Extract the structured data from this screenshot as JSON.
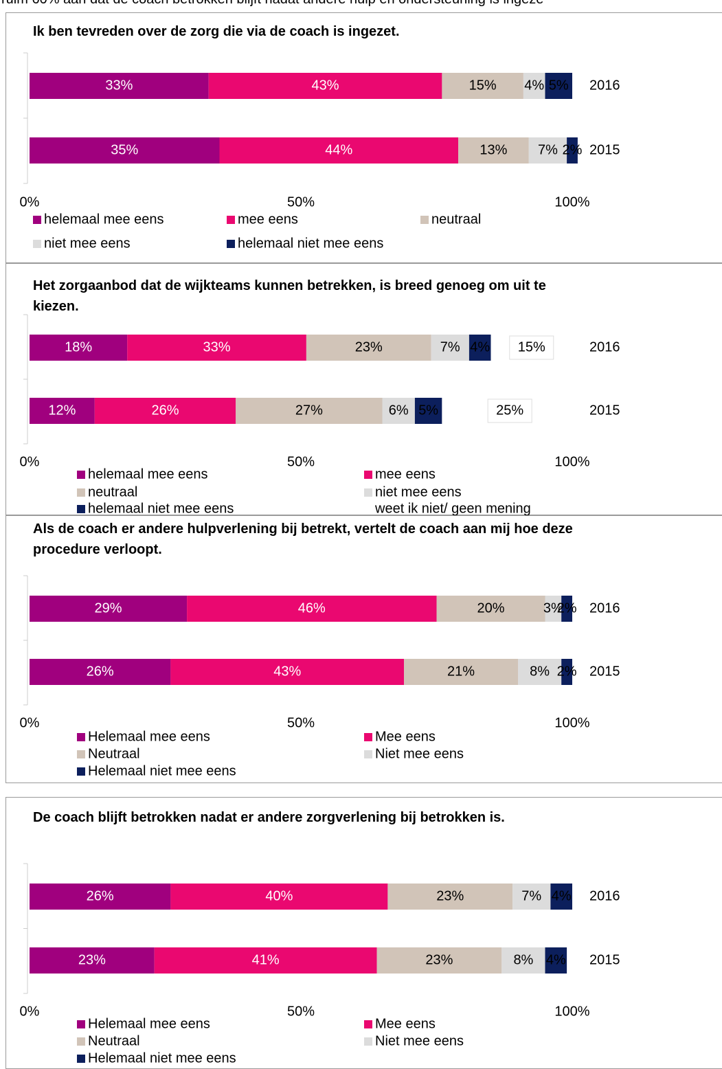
{
  "intro": "ruim 60% aan dat de coach betrokken blijft nadat andere hulp en ondersteuning is ingeze",
  "chart_data": [
    {
      "type": "stacked_bar_horizontal",
      "title": "Ik ben tevreden over de zorg die via de coach is ingezet.",
      "categories": [
        "2016",
        "2015"
      ],
      "xlim": [
        0,
        100
      ],
      "xticks": [
        {
          "value": 0,
          "label": "0%"
        },
        {
          "value": 50,
          "label": "50%"
        },
        {
          "value": 100,
          "label": "100%"
        }
      ],
      "series": [
        {
          "name": "helemaal mee eens",
          "color": "#a0007e",
          "label_color": "#ffffff",
          "values": [
            33,
            35
          ],
          "value_labels": [
            "33%",
            "35%"
          ]
        },
        {
          "name": "mee eens",
          "color": "#ea0870",
          "label_color": "#ffffff",
          "values": [
            43,
            44
          ],
          "value_labels": [
            "43%",
            "44%"
          ]
        },
        {
          "name": "neutraal",
          "color": "#d1c4b8",
          "label_color": "#000000",
          "values": [
            15,
            13
          ],
          "value_labels": [
            "15%",
            "13%"
          ]
        },
        {
          "name": "niet mee eens",
          "color": "#dcdcdc",
          "label_color": "#000000",
          "values": [
            4,
            7
          ],
          "value_labels": [
            "4%",
            "7%"
          ]
        },
        {
          "name": "helemaal niet mee eens",
          "color": "#0c1f5c",
          "label_color": "#000000",
          "values": [
            5,
            2
          ],
          "value_labels": [
            "5%",
            "2%"
          ]
        }
      ]
    },
    {
      "type": "stacked_bar_horizontal",
      "title": "Het zorgaanbod dat de wijkteams kunnen betrekken, is breed genoeg om uit te kiezen.",
      "categories": [
        "2016",
        "2015"
      ],
      "xlim": [
        0,
        100
      ],
      "xticks": [
        {
          "value": 0,
          "label": "0%"
        },
        {
          "value": 50,
          "label": "50%"
        },
        {
          "value": 100,
          "label": "100%"
        }
      ],
      "series": [
        {
          "name": "helemaal mee eens",
          "color": "#a0007e",
          "label_color": "#ffffff",
          "values": [
            18,
            12
          ],
          "value_labels": [
            "18%",
            "12%"
          ]
        },
        {
          "name": "mee eens",
          "color": "#ea0870",
          "label_color": "#ffffff",
          "values": [
            33,
            26
          ],
          "value_labels": [
            "33%",
            "26%"
          ]
        },
        {
          "name": "neutraal",
          "color": "#d1c4b8",
          "label_color": "#000000",
          "values": [
            23,
            27
          ],
          "value_labels": [
            "23%",
            "27%"
          ]
        },
        {
          "name": "niet mee eens",
          "color": "#dcdcdc",
          "label_color": "#000000",
          "values": [
            7,
            6
          ],
          "value_labels": [
            "7%",
            "6%"
          ]
        },
        {
          "name": "helemaal niet mee eens",
          "color": "#0c1f5c",
          "label_color": "#000000",
          "values": [
            4,
            5
          ],
          "value_labels": [
            "4%",
            "5%"
          ]
        },
        {
          "name": "weet ik niet/ geen mening",
          "color": "#ffffff",
          "label_color": "#000000",
          "label_box": true,
          "values": [
            15,
            25
          ],
          "value_labels": [
            "15%",
            "25%"
          ]
        }
      ]
    },
    {
      "type": "stacked_bar_horizontal",
      "title": "Als de coach er andere hulpverlening bij betrekt, vertelt de coach aan mij hoe deze procedure verloopt.",
      "categories": [
        "2016",
        "2015"
      ],
      "xlim": [
        0,
        100
      ],
      "xticks": [
        {
          "value": 0,
          "label": "0%"
        },
        {
          "value": 50,
          "label": "50%"
        },
        {
          "value": 100,
          "label": "100%"
        }
      ],
      "series": [
        {
          "name": "Helemaal mee eens",
          "color": "#a0007e",
          "label_color": "#ffffff",
          "values": [
            29,
            26
          ],
          "value_labels": [
            "29%",
            "26%"
          ]
        },
        {
          "name": "Mee eens",
          "color": "#ea0870",
          "label_color": "#ffffff",
          "values": [
            46,
            43
          ],
          "value_labels": [
            "46%",
            "43%"
          ]
        },
        {
          "name": "Neutraal",
          "color": "#d1c4b8",
          "label_color": "#000000",
          "values": [
            20,
            21
          ],
          "value_labels": [
            "20%",
            "21%"
          ]
        },
        {
          "name": "Niet mee eens",
          "color": "#dcdcdc",
          "label_color": "#000000",
          "values": [
            3,
            8
          ],
          "value_labels": [
            "3%",
            "8%"
          ]
        },
        {
          "name": "Helemaal niet mee eens",
          "color": "#0c1f5c",
          "label_color": "#000000",
          "values": [
            2,
            2
          ],
          "value_labels": [
            "2%",
            "2%"
          ]
        }
      ]
    },
    {
      "type": "stacked_bar_horizontal",
      "title": "De coach blijft betrokken nadat er andere zorgverlening bij betrokken is.",
      "categories": [
        "2016",
        "2015"
      ],
      "xlim": [
        0,
        100
      ],
      "xticks": [
        {
          "value": 0,
          "label": "0%"
        },
        {
          "value": 50,
          "label": "50%"
        },
        {
          "value": 100,
          "label": "100%"
        }
      ],
      "series": [
        {
          "name": "Helemaal mee eens",
          "color": "#a0007e",
          "label_color": "#ffffff",
          "values": [
            26,
            23
          ],
          "value_labels": [
            "26%",
            "23%"
          ]
        },
        {
          "name": "Mee eens",
          "color": "#ea0870",
          "label_color": "#ffffff",
          "values": [
            40,
            41
          ],
          "value_labels": [
            "40%",
            "41%"
          ]
        },
        {
          "name": "Neutraal",
          "color": "#d1c4b8",
          "label_color": "#000000",
          "values": [
            23,
            23
          ],
          "value_labels": [
            "23%",
            "23%"
          ]
        },
        {
          "name": "Niet mee eens",
          "color": "#dcdcdc",
          "label_color": "#000000",
          "values": [
            7,
            8
          ],
          "value_labels": [
            "7%",
            "8%"
          ]
        },
        {
          "name": "Helemaal niet mee eens",
          "color": "#0c1f5c",
          "label_color": "#000000",
          "values": [
            4,
            4
          ],
          "value_labels": [
            "4%",
            "4%"
          ]
        }
      ]
    }
  ]
}
